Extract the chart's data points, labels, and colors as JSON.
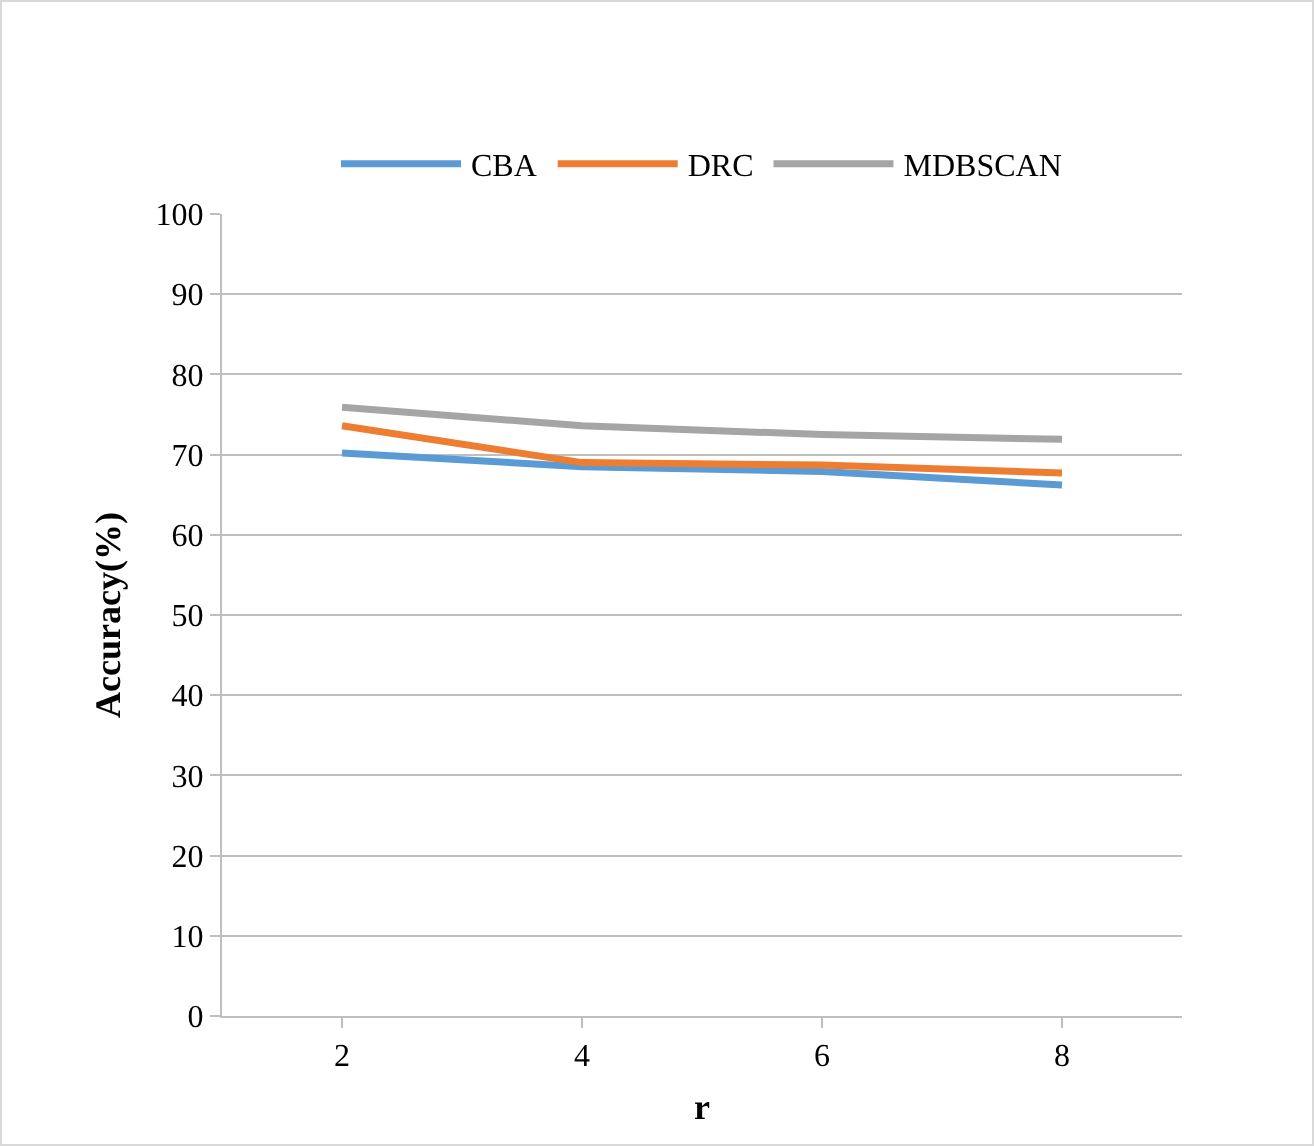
{
  "chart_data": {
    "type": "line",
    "xlabel": "r",
    "ylabel": "Accuracy(%)",
    "categories": [
      "2",
      "4",
      "6",
      "8"
    ],
    "series": [
      {
        "name": "CBA",
        "color": "#5b9bd5",
        "values": [
          70.2,
          68.5,
          67.9,
          66.2
        ]
      },
      {
        "name": "DRC",
        "color": "#ed7d31",
        "values": [
          73.6,
          69.0,
          68.7,
          67.7
        ]
      },
      {
        "name": "MDBSCAN",
        "color": "#a5a5a5",
        "values": [
          75.9,
          73.6,
          72.5,
          71.9
        ]
      }
    ],
    "ylim": [
      0,
      100
    ],
    "yticks": [
      0,
      10,
      20,
      30,
      40,
      50,
      60,
      70,
      80,
      90,
      100
    ],
    "grid": "y",
    "legend": "top",
    "marker": "none",
    "line_style": "solid"
  }
}
